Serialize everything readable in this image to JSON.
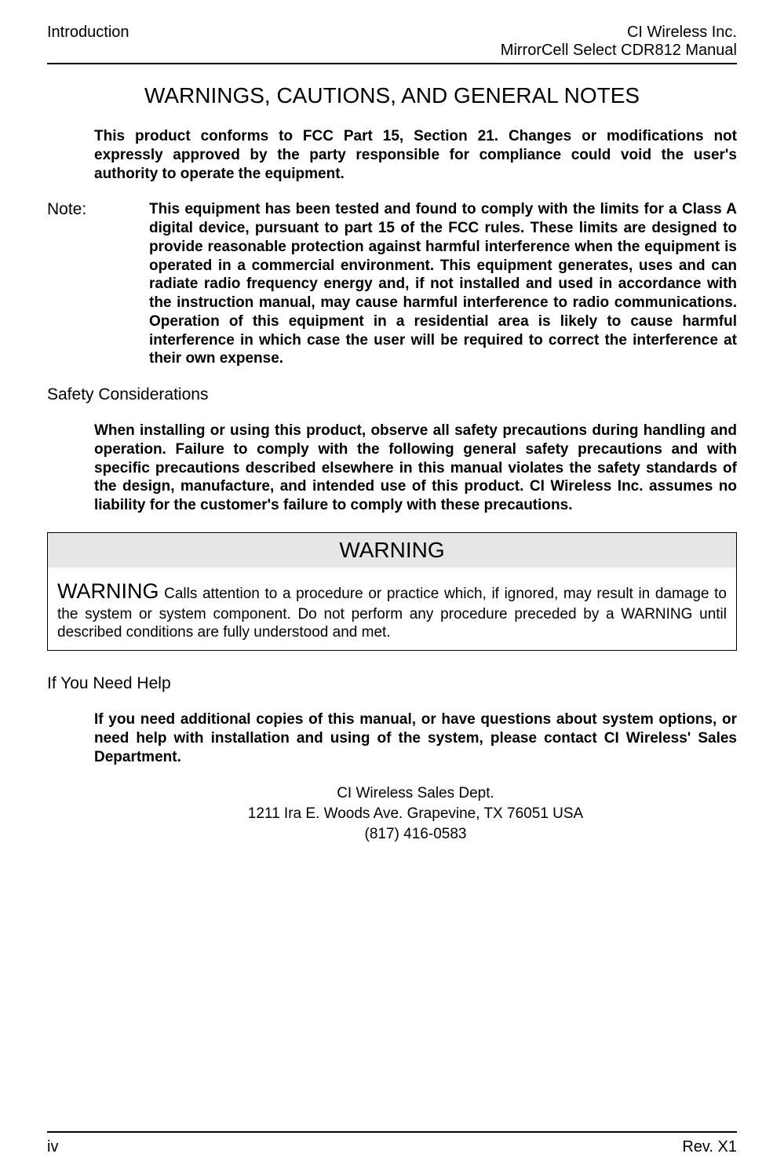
{
  "header": {
    "left": "Introduction",
    "right_line1": "CI Wireless Inc.",
    "right_line2": "MirrorCell Select CDR812 Manual"
  },
  "title": "WARNINGS, CAUTIONS, AND GENERAL NOTES",
  "intro_para": "This product conforms to FCC Part 15, Section 21.  Changes or modifications not expressly approved by the party responsible for compliance could void the user's authority to operate the equipment.",
  "note": {
    "label": "Note:",
    "body": "This equipment has been tested and found to comply with the limits for a Class A digital device, pursuant to part 15 of the FCC rules.  These limits are designed to provide reasonable protection against harmful interference when the equipment is operated in a commercial environment.  This equipment generates, uses and can radiate radio frequency energy and, if not installed and used in accordance with the instruction manual, may cause harmful interference to radio communications. Operation of this equipment in a residential area is likely to cause harmful interference in which case the user will be required to correct the interference at their own expense."
  },
  "safety": {
    "heading": "Safety Considerations",
    "body": "When installing or using this product, observe all safety precautions during handling and operation.  Failure to comply with the following general safety precautions and with specific precautions described elsewhere in this manual violates the safety standards of the design, manufacture, and intended use of this product. CI Wireless Inc. assumes no liability for the customer's failure to comply with these precautions."
  },
  "warning_box": {
    "header": "WARNING",
    "lead": "WARNING",
    "body": " Calls attention to a procedure or practice which, if ignored, may result in damage to the system or system component.  Do not perform any procedure preceded by a WARNING until described conditions are fully understood and met."
  },
  "help": {
    "heading": "If You Need Help",
    "body": "If you need additional copies of this manual, or have questions about system options, or need help with installation and using of the system, please contact CI Wireless' Sales Department.",
    "contact_line1": "CI Wireless Sales Dept.",
    "contact_line2": "1211 Ira E. Woods Ave. Grapevine, TX 76051 USA",
    "contact_line3": "(817) 416-0583"
  },
  "footer": {
    "left": "iv",
    "right": "Rev. X1"
  },
  "colors": {
    "background": "#ffffff",
    "text": "#000000",
    "warning_head_bg": "#e6e6e6",
    "rule": "#000000"
  },
  "typography": {
    "body_font": "Arial",
    "title_size_pt": 21,
    "body_size_pt": 14,
    "warning_head_size_pt": 21
  }
}
